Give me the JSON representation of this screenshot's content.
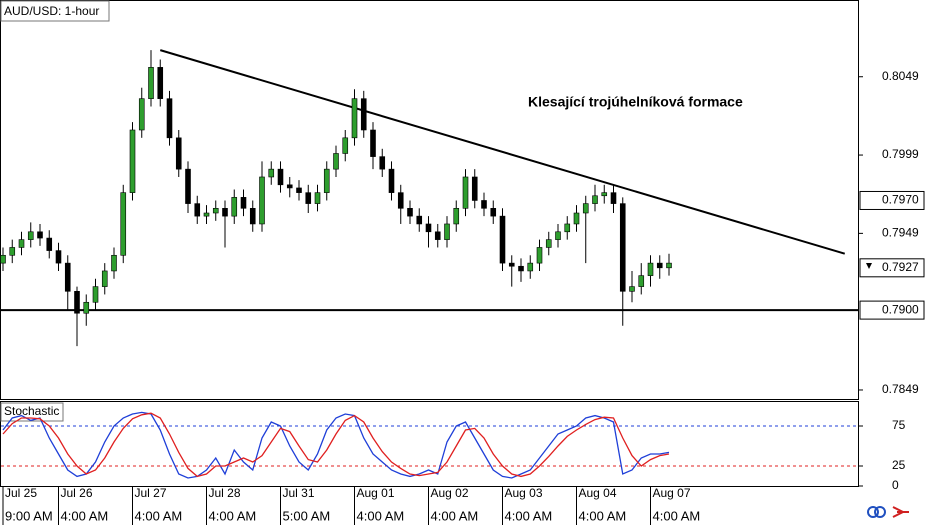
{
  "chart_data": [
    {
      "type": "candlestick",
      "title": "AUD/USD: 1-hour",
      "annotation": "Klesající trojúhelníková formace",
      "categories": [
        "Jul 25",
        null,
        null,
        null,
        null,
        null,
        "Jul 26",
        null,
        null,
        null,
        null,
        null,
        null,
        null,
        "Jul 27",
        null,
        null,
        null,
        null,
        null,
        null,
        null,
        "Jul 28",
        null,
        null,
        null,
        null,
        null,
        null,
        null,
        "Jul 31",
        null,
        null,
        null,
        null,
        null,
        null,
        null,
        "Aug 01",
        null,
        null,
        null,
        null,
        null,
        null,
        null,
        "Aug 02",
        null,
        null,
        null,
        null,
        null,
        null,
        null,
        "Aug 03",
        null,
        null,
        null,
        null,
        null,
        null,
        null,
        "Aug 04",
        null,
        null,
        null,
        null,
        null,
        null,
        null,
        "Aug 07",
        null,
        null
      ],
      "category_times": [
        "9:00 AM",
        null,
        null,
        null,
        null,
        null,
        "4:00 AM",
        null,
        null,
        null,
        null,
        null,
        null,
        null,
        "4:00 AM",
        null,
        null,
        null,
        null,
        null,
        null,
        null,
        "4:00 AM",
        null,
        null,
        null,
        null,
        null,
        null,
        null,
        "5:00 AM",
        null,
        null,
        null,
        null,
        null,
        null,
        null,
        "4:00 AM",
        null,
        null,
        null,
        null,
        null,
        null,
        null,
        "4:00 AM",
        null,
        null,
        null,
        null,
        null,
        null,
        null,
        "4:00 AM",
        null,
        null,
        null,
        null,
        null,
        null,
        null,
        "4:00 AM",
        null,
        null,
        null,
        null,
        null,
        null,
        null,
        "4:00 AM",
        null,
        null
      ],
      "open": [
        0.793,
        0.7935,
        0.794,
        0.7945,
        0.795,
        0.7946,
        0.7938,
        0.793,
        0.7912,
        0.7898,
        0.7905,
        0.7915,
        0.7925,
        0.7935,
        0.7975,
        0.8015,
        0.8035,
        0.8055,
        0.8035,
        0.801,
        0.799,
        0.7968,
        0.796,
        0.7962,
        0.7965,
        0.796,
        0.7972,
        0.7965,
        0.7955,
        0.7985,
        0.799,
        0.798,
        0.7978,
        0.7975,
        0.7968,
        0.7975,
        0.799,
        0.8,
        0.801,
        0.8035,
        0.8015,
        0.7998,
        0.799,
        0.7975,
        0.7965,
        0.796,
        0.7955,
        0.795,
        0.7945,
        0.7955,
        0.7965,
        0.7985,
        0.797,
        0.7965,
        0.796,
        0.793,
        0.7928,
        0.7925,
        0.793,
        0.794,
        0.7945,
        0.795,
        0.7955,
        0.7962,
        0.7968,
        0.7973,
        0.7975,
        0.7968,
        0.7912,
        0.7915,
        0.7922,
        0.793,
        0.7927
      ],
      "high": [
        0.794,
        0.7945,
        0.795,
        0.7956,
        0.7955,
        0.7951,
        0.7943,
        0.7935,
        0.7915,
        0.791,
        0.792,
        0.793,
        0.794,
        0.798,
        0.802,
        0.8042,
        0.8066,
        0.806,
        0.804,
        0.8015,
        0.7995,
        0.7973,
        0.7967,
        0.797,
        0.797,
        0.7977,
        0.7977,
        0.797,
        0.7995,
        0.7995,
        0.7995,
        0.7985,
        0.7983,
        0.798,
        0.798,
        0.7995,
        0.8005,
        0.8015,
        0.8041,
        0.804,
        0.802,
        0.8003,
        0.7995,
        0.798,
        0.797,
        0.7965,
        0.796,
        0.7955,
        0.796,
        0.797,
        0.799,
        0.799,
        0.7975,
        0.797,
        0.7965,
        0.7935,
        0.7933,
        0.7935,
        0.7945,
        0.795,
        0.7955,
        0.796,
        0.7967,
        0.7973,
        0.798,
        0.798,
        0.798,
        0.7972,
        0.7925,
        0.793,
        0.7935,
        0.7935,
        0.7936
      ],
      "low": [
        0.7925,
        0.793,
        0.7935,
        0.794,
        0.7941,
        0.7933,
        0.7925,
        0.79,
        0.7877,
        0.789,
        0.79,
        0.791,
        0.792,
        0.793,
        0.797,
        0.801,
        0.803,
        0.803,
        0.8005,
        0.7985,
        0.7962,
        0.7955,
        0.7955,
        0.7957,
        0.794,
        0.7955,
        0.796,
        0.795,
        0.795,
        0.798,
        0.7975,
        0.7972,
        0.797,
        0.7962,
        0.7963,
        0.797,
        0.7985,
        0.7995,
        0.8005,
        0.801,
        0.799,
        0.7985,
        0.797,
        0.7955,
        0.7955,
        0.795,
        0.794,
        0.794,
        0.794,
        0.795,
        0.796,
        0.7965,
        0.796,
        0.7955,
        0.7925,
        0.7915,
        0.7918,
        0.792,
        0.7925,
        0.7935,
        0.794,
        0.7945,
        0.795,
        0.793,
        0.7963,
        0.7968,
        0.7962,
        0.789,
        0.7905,
        0.791,
        0.7915,
        0.792,
        0.7922
      ],
      "close": [
        0.7935,
        0.794,
        0.7945,
        0.795,
        0.7946,
        0.7938,
        0.793,
        0.7912,
        0.7898,
        0.7905,
        0.7915,
        0.7925,
        0.7935,
        0.7975,
        0.8015,
        0.8035,
        0.8055,
        0.8035,
        0.801,
        0.799,
        0.7968,
        0.796,
        0.7962,
        0.7965,
        0.796,
        0.7972,
        0.7965,
        0.7955,
        0.7985,
        0.799,
        0.798,
        0.7978,
        0.7975,
        0.7968,
        0.7975,
        0.799,
        0.8,
        0.801,
        0.8035,
        0.8015,
        0.7998,
        0.799,
        0.7975,
        0.7965,
        0.796,
        0.7955,
        0.795,
        0.7945,
        0.7955,
        0.7965,
        0.7985,
        0.797,
        0.7965,
        0.796,
        0.793,
        0.7928,
        0.7925,
        0.793,
        0.794,
        0.7945,
        0.795,
        0.7955,
        0.7962,
        0.7968,
        0.7973,
        0.7975,
        0.7968,
        0.7912,
        0.7915,
        0.7922,
        0.793,
        0.7927,
        0.793
      ],
      "up_color": "#2e9e2e",
      "down_color": "#000000",
      "ylim": [
        0.78426,
        0.8098
      ],
      "yticks": [
        0.7849,
        0.7949,
        0.7999,
        0.8049
      ],
      "price_markers": [
        {
          "value": 0.797,
          "label": "0.7970"
        },
        0.7927,
        {
          "value": 0.79,
          "label": "0.7900"
        }
      ],
      "trendline": {
        "x": [
          17,
          91
        ],
        "y": [
          0.8066,
          0.7936
        ]
      },
      "horizontal_lines": [
        0.79
      ]
    },
    {
      "type": "line",
      "title": "Stochastic",
      "series": [
        {
          "color": "#1f3fd8",
          "values": [
            70,
            85,
            88,
            82,
            85,
            60,
            40,
            20,
            12,
            15,
            30,
            55,
            75,
            85,
            90,
            92,
            90,
            70,
            40,
            15,
            10,
            12,
            20,
            35,
            15,
            45,
            30,
            20,
            60,
            80,
            75,
            50,
            30,
            20,
            40,
            70,
            85,
            90,
            88,
            60,
            40,
            30,
            20,
            15,
            12,
            15,
            20,
            15,
            55,
            75,
            80,
            60,
            40,
            20,
            12,
            10,
            15,
            20,
            35,
            50,
            65,
            70,
            75,
            85,
            88,
            85,
            80,
            15,
            20,
            35,
            40,
            40,
            42
          ]
        },
        {
          "color": "#e02020",
          "values": [
            65,
            78,
            85,
            85,
            84,
            75,
            60,
            40,
            25,
            15,
            20,
            35,
            55,
            72,
            84,
            89,
            91,
            85,
            65,
            42,
            22,
            12,
            15,
            25,
            25,
            30,
            35,
            30,
            38,
            55,
            72,
            68,
            50,
            33,
            30,
            45,
            65,
            82,
            88,
            80,
            60,
            43,
            30,
            22,
            15,
            13,
            15,
            17,
            30,
            50,
            70,
            72,
            60,
            40,
            25,
            15,
            12,
            15,
            25,
            37,
            50,
            62,
            70,
            77,
            83,
            86,
            85,
            60,
            38,
            25,
            33,
            38,
            40
          ]
        }
      ],
      "levels": [
        {
          "value": 75,
          "color": "#1f3fd8"
        },
        {
          "value": 25,
          "color": "#e02020"
        }
      ],
      "ylim": [
        0,
        105
      ],
      "yticks": [
        75,
        25,
        0
      ]
    }
  ]
}
